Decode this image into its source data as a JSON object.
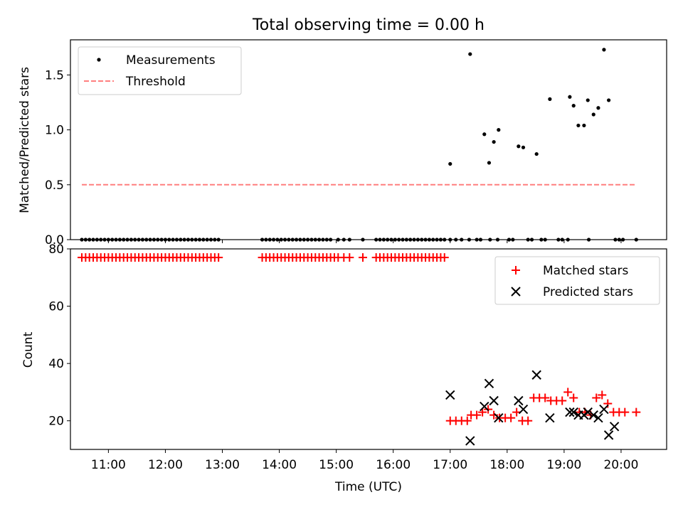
{
  "figure": {
    "title": "Total observing time = 0.00 h"
  },
  "chart_data": [
    {
      "type": "scatter",
      "panel": "top",
      "title": "Total observing time = 0.00 h",
      "xlabel": "",
      "ylabel": "Matched/Predicted stars",
      "xlim": [
        "10:20",
        "20:48"
      ],
      "ylim": [
        0,
        1.82
      ],
      "yticks": [
        0.0,
        0.5,
        1.0,
        1.5
      ],
      "ytick_labels": [
        "0.0",
        "0.5",
        "1.0",
        "1.5"
      ],
      "grid": false,
      "legend": {
        "placement": "upper-left",
        "entries": [
          "Measurements",
          "Threshold"
        ]
      },
      "series": [
        {
          "name": "Measurements",
          "kind": "scatter",
          "color": "#000000",
          "x": [
            "10:32",
            "10:36",
            "10:40",
            "10:44",
            "10:48",
            "10:52",
            "10:56",
            "11:00",
            "11:04",
            "11:08",
            "11:12",
            "11:16",
            "11:20",
            "11:24",
            "11:28",
            "11:32",
            "11:36",
            "11:40",
            "11:44",
            "11:48",
            "11:52",
            "11:56",
            "12:00",
            "12:04",
            "12:08",
            "12:12",
            "12:16",
            "12:20",
            "12:24",
            "12:28",
            "12:32",
            "12:36",
            "12:40",
            "12:44",
            "12:48",
            "12:52",
            "12:56",
            "13:42",
            "13:46",
            "13:50",
            "13:54",
            "13:58",
            "14:02",
            "14:06",
            "14:10",
            "14:14",
            "14:18",
            "14:22",
            "14:26",
            "14:30",
            "14:34",
            "14:38",
            "14:42",
            "14:46",
            "14:50",
            "14:54",
            "15:02",
            "15:08",
            "15:14",
            "15:28",
            "15:42",
            "15:46",
            "15:50",
            "15:54",
            "15:58",
            "16:02",
            "16:06",
            "16:10",
            "16:14",
            "16:18",
            "16:22",
            "16:26",
            "16:30",
            "16:34",
            "16:38",
            "16:42",
            "16:46",
            "16:50",
            "16:54",
            "17:00",
            "17:06",
            "17:12",
            "17:20",
            "17:28",
            "17:32",
            "17:42",
            "17:50",
            "18:02",
            "18:06",
            "18:22",
            "18:26",
            "18:36",
            "18:40",
            "18:54",
            "18:58",
            "19:04",
            "19:26",
            "19:54",
            "19:58",
            "20:02",
            "20:16",
            "17:00",
            "17:21",
            "17:36",
            "17:41",
            "17:46",
            "17:51",
            "18:12",
            "18:17",
            "18:31",
            "18:45",
            "19:06",
            "19:10",
            "19:15",
            "19:21",
            "19:25",
            "19:31",
            "19:36",
            "19:42",
            "19:47"
          ],
          "y": [
            0,
            0,
            0,
            0,
            0,
            0,
            0,
            0,
            0,
            0,
            0,
            0,
            0,
            0,
            0,
            0,
            0,
            0,
            0,
            0,
            0,
            0,
            0,
            0,
            0,
            0,
            0,
            0,
            0,
            0,
            0,
            0,
            0,
            0,
            0,
            0,
            0,
            0,
            0,
            0,
            0,
            0,
            0,
            0,
            0,
            0,
            0,
            0,
            0,
            0,
            0,
            0,
            0,
            0,
            0,
            0,
            0,
            0,
            0,
            0,
            0,
            0,
            0,
            0,
            0,
            0,
            0,
            0,
            0,
            0,
            0,
            0,
            0,
            0,
            0,
            0,
            0,
            0,
            0,
            0,
            0,
            0,
            0,
            0,
            0,
            0,
            0,
            0,
            0,
            0,
            0,
            0,
            0,
            0,
            0,
            0,
            0,
            0,
            0,
            0,
            0,
            0.69,
            1.69,
            0.96,
            0.7,
            0.89,
            1.0,
            0.85,
            0.84,
            0.78,
            1.28,
            1.3,
            1.22,
            1.04,
            1.04,
            1.27,
            1.14,
            1.2,
            1.73,
            1.27
          ]
        },
        {
          "name": "Threshold",
          "kind": "line",
          "color": "#ff7f7f",
          "style": "dashed",
          "x": [
            "10:32",
            "20:16"
          ],
          "y": [
            0.5,
            0.5
          ]
        }
      ]
    },
    {
      "type": "scatter",
      "panel": "bottom",
      "title": "",
      "xlabel": "Time (UTC)",
      "ylabel": "Count",
      "xlim": [
        "10:20",
        "20:48"
      ],
      "ylim": [
        10,
        80
      ],
      "xticks": [
        "11:00",
        "12:00",
        "13:00",
        "14:00",
        "15:00",
        "16:00",
        "17:00",
        "18:00",
        "19:00",
        "20:00"
      ],
      "yticks": [
        20,
        40,
        60,
        80
      ],
      "ytick_labels": [
        "20",
        "40",
        "60",
        "80"
      ],
      "grid": false,
      "legend": {
        "placement": "upper-right",
        "entries": [
          "Matched stars",
          "Predicted stars"
        ]
      },
      "series": [
        {
          "name": "Matched stars",
          "kind": "plus",
          "color": "#ff0000",
          "x": [
            "10:32",
            "10:36",
            "10:40",
            "10:44",
            "10:48",
            "10:52",
            "10:56",
            "11:00",
            "11:04",
            "11:08",
            "11:12",
            "11:16",
            "11:20",
            "11:24",
            "11:28",
            "11:32",
            "11:36",
            "11:40",
            "11:44",
            "11:48",
            "11:52",
            "11:56",
            "12:00",
            "12:04",
            "12:08",
            "12:12",
            "12:16",
            "12:20",
            "12:24",
            "12:28",
            "12:32",
            "12:36",
            "12:40",
            "12:44",
            "12:48",
            "12:52",
            "12:56",
            "13:42",
            "13:46",
            "13:50",
            "13:54",
            "13:58",
            "14:02",
            "14:06",
            "14:10",
            "14:14",
            "14:18",
            "14:22",
            "14:26",
            "14:30",
            "14:34",
            "14:38",
            "14:42",
            "14:46",
            "14:50",
            "14:54",
            "14:58",
            "15:02",
            "15:08",
            "15:14",
            "15:28",
            "15:42",
            "15:46",
            "15:50",
            "15:54",
            "15:58",
            "16:02",
            "16:06",
            "16:10",
            "16:14",
            "16:18",
            "16:22",
            "16:26",
            "16:30",
            "16:34",
            "16:38",
            "16:42",
            "16:46",
            "16:50",
            "16:54",
            "17:00",
            "17:06",
            "17:12",
            "17:18",
            "17:22",
            "17:28",
            "17:34",
            "17:40",
            "17:46",
            "17:52",
            "17:58",
            "18:04",
            "18:10",
            "18:16",
            "18:22",
            "18:28",
            "18:34",
            "18:40",
            "18:46",
            "18:52",
            "18:58",
            "19:04",
            "19:10",
            "19:16",
            "19:22",
            "19:28",
            "19:34",
            "19:40",
            "19:46",
            "19:52",
            "19:58",
            "20:04",
            "20:16"
          ],
          "y": [
            77,
            77,
            77,
            77,
            77,
            77,
            77,
            77,
            77,
            77,
            77,
            77,
            77,
            77,
            77,
            77,
            77,
            77,
            77,
            77,
            77,
            77,
            77,
            77,
            77,
            77,
            77,
            77,
            77,
            77,
            77,
            77,
            77,
            77,
            77,
            77,
            77,
            77,
            77,
            77,
            77,
            77,
            77,
            77,
            77,
            77,
            77,
            77,
            77,
            77,
            77,
            77,
            77,
            77,
            77,
            77,
            77,
            77,
            77,
            77,
            77,
            77,
            77,
            77,
            77,
            77,
            77,
            77,
            77,
            77,
            77,
            77,
            77,
            77,
            77,
            77,
            77,
            77,
            77,
            77,
            20,
            20,
            20,
            20,
            22,
            22,
            23,
            24,
            22,
            21,
            21,
            21,
            23,
            20,
            20,
            28,
            28,
            28,
            27,
            27,
            27,
            30,
            28,
            23,
            23,
            22,
            28,
            29,
            26,
            23,
            23,
            23,
            23
          ]
        },
        {
          "name": "Predicted stars",
          "kind": "x",
          "color": "#000000",
          "x": [
            "17:00",
            "17:21",
            "17:36",
            "17:41",
            "17:46",
            "17:51",
            "18:12",
            "18:17",
            "18:31",
            "18:45",
            "19:06",
            "19:10",
            "19:15",
            "19:21",
            "19:25",
            "19:31",
            "19:36",
            "19:42",
            "19:47",
            "19:53"
          ],
          "y": [
            29,
            13,
            25,
            33,
            27,
            21,
            27,
            24,
            36,
            21,
            23,
            23,
            22,
            22,
            23,
            22,
            21,
            24,
            15,
            18
          ]
        }
      ]
    }
  ]
}
